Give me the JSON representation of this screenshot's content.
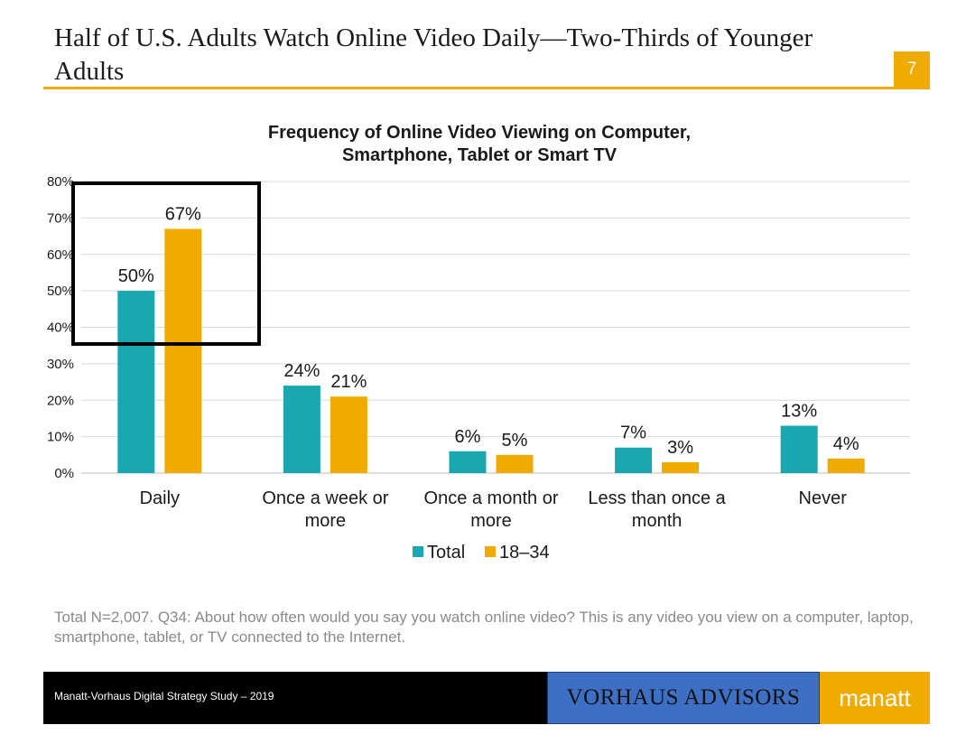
{
  "slide": {
    "title": "Half of U.S. Adults Watch Online Video Daily—Two-Thirds of Younger Adults",
    "page_number": "7",
    "footnote": "Total N=2,007. Q34: About how often would you say you watch online video? This is any video you view on a computer, laptop, smartphone, tablet, or TV connected to the Internet.",
    "footer_text": "Manatt-Vorhaus Digital Strategy Study – 2019",
    "vorhaus_logo": "VORHAUS ADVISORS",
    "manatt_logo": "manatt"
  },
  "colors": {
    "accent": "#f0ab00",
    "teal": "#1aa8b0",
    "gold": "#f0ab00",
    "grid": "#d9d9d9"
  },
  "chart_data": {
    "type": "bar",
    "title": "Frequency of Online Video Viewing on Computer, Smartphone, Tablet or Smart TV",
    "title_lines": [
      "Frequency of Online Video Viewing on Computer,",
      "Smartphone, Tablet or Smart TV"
    ],
    "categories": [
      "Daily",
      "Once a week or more",
      "Once a month or more",
      "Less than once a month",
      "Never"
    ],
    "category_lines": [
      [
        "Daily"
      ],
      [
        "Once a week or",
        "more"
      ],
      [
        "Once a month or",
        "more"
      ],
      [
        "Less than once a",
        "month"
      ],
      [
        "Never"
      ]
    ],
    "series": [
      {
        "name": "Total",
        "values": [
          50,
          24,
          6,
          7,
          13
        ]
      },
      {
        "name": "18–34",
        "values": [
          67,
          21,
          5,
          3,
          4
        ]
      }
    ],
    "ylim": [
      0,
      80
    ],
    "yticks": [
      0,
      10,
      20,
      30,
      40,
      50,
      60,
      70,
      80
    ],
    "value_suffix": "%",
    "grid": true,
    "legend_position": "bottom",
    "highlight_category": "Daily"
  }
}
